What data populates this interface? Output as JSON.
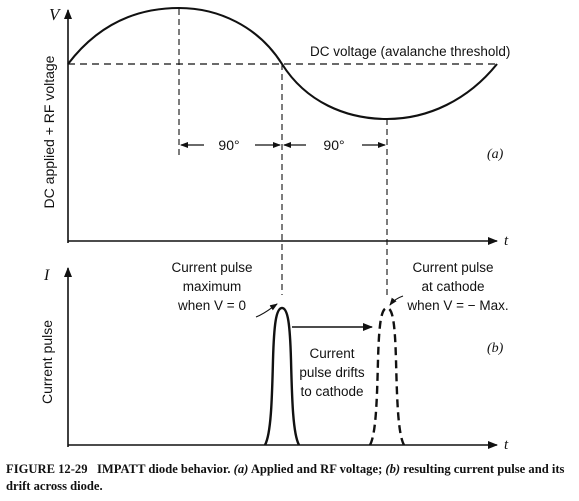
{
  "panel_a": {
    "y_axis_label": "DC applied + RF voltage",
    "y_axis_symbol": "V",
    "x_axis_symbol": "t",
    "dc_line_label": "DC voltage (avalanche threshold)",
    "phase_left": "90°",
    "phase_right": "90°",
    "tag": "(a)"
  },
  "panel_b": {
    "y_axis_label": "Current pulse",
    "y_axis_symbol": "I",
    "x_axis_symbol": "t",
    "left_note": [
      "Current pulse",
      "maximum",
      "when V = 0"
    ],
    "right_note": [
      "Current pulse",
      "at cathode",
      "when V = − Max."
    ],
    "drift_note": [
      "Current",
      "pulse drifts",
      "to cathode"
    ],
    "tag": "(b)"
  },
  "caption": {
    "figure_number": "FIGURE 12-29",
    "title": "IMPATT diode behavior.",
    "part_a": "(a)",
    "part_a_text": "Applied and RF voltage;",
    "part_b": "(b)",
    "part_b_text": "resulting current pulse and its drift across diode."
  }
}
